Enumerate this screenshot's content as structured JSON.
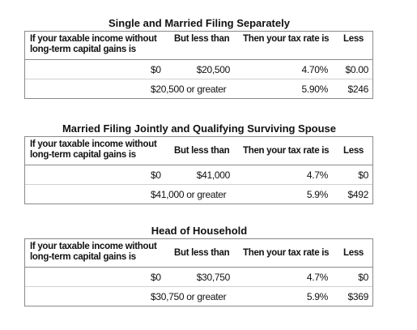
{
  "sections": [
    {
      "title": "Single and Married Filing Separately",
      "header": [
        "If your taxable income without long-term capital gains is",
        "But less than",
        "Then your tax rate is",
        "Less"
      ],
      "rows": [
        [
          "$0",
          "$20,500",
          "4.70%",
          "$0.00"
        ],
        [
          "$20,500 or greater",
          "5.90%",
          "$246"
        ]
      ]
    },
    {
      "title": "Married Filing Jointly and Qualifying Surviving Spouse",
      "header": [
        "If your taxable income without long-term capital gains is",
        "But less than",
        "Then your tax rate is",
        "Less"
      ],
      "rows": [
        [
          "$0",
          "$41,000",
          "4.7%",
          "$0"
        ],
        [
          "$41,000 or greater",
          "5.9%",
          "$492"
        ]
      ]
    },
    {
      "title": "Head of Household",
      "header": [
        "If your taxable income without long-term capital gains is",
        "But less than",
        "Then your tax rate is",
        "Less"
      ],
      "rows": [
        [
          "$0",
          "$30,750",
          "4.7%",
          "$0"
        ],
        [
          "$30,750 or greater",
          "5.9%",
          "$369"
        ]
      ]
    }
  ]
}
